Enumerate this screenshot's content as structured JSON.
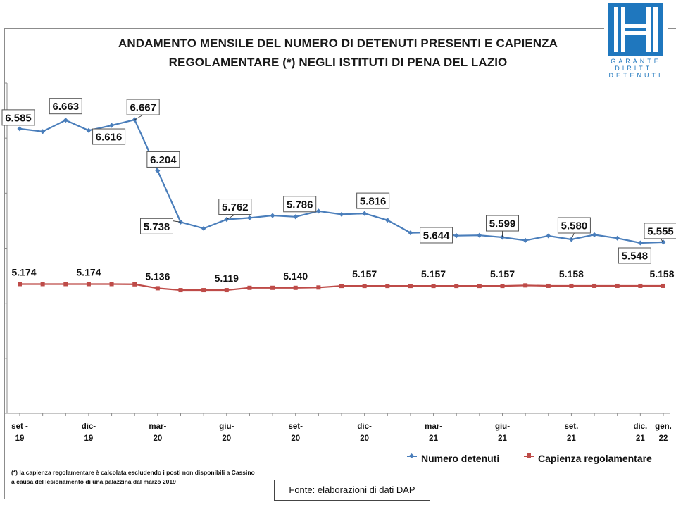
{
  "title": {
    "line1": "ANDAMENTO MENSILE  DEL NUMERO DI DETENUTI PRESENTI E CAPIENZA",
    "line2": "REGOLAMENTARE (*) NEGLI ISTITUTI DI PENA DEL LAZIO"
  },
  "logo": {
    "line1": "GARANTE",
    "line2": "DIRITTI",
    "line3": "DETENUTI"
  },
  "footnote": {
    "line1": "(*) la capienza regolamentare è calcolata escludendo i posti non disponibili a Cassino",
    "line2": "a causa del lesionamento di una palazzina dal marzo 2019"
  },
  "source": "Fonte: elaborazioni di dati DAP",
  "colors": {
    "detenuti": "#4a7ebb",
    "capienza": "#be4b48",
    "axis": "#8c8c8c"
  },
  "chart_data": {
    "type": "line",
    "ylim": [
      4000,
      7000
    ],
    "grid": false,
    "legend_position": "bottom-right",
    "tick_labels": [
      {
        "index": 0,
        "line1": "set -",
        "line2": "19"
      },
      {
        "index": 3,
        "line1": "dic-",
        "line2": "19"
      },
      {
        "index": 6,
        "line1": "mar-",
        "line2": "20"
      },
      {
        "index": 9,
        "line1": "giu-",
        "line2": "20"
      },
      {
        "index": 12,
        "line1": "set-",
        "line2": "20"
      },
      {
        "index": 15,
        "line1": "dic-",
        "line2": "20"
      },
      {
        "index": 18,
        "line1": "mar-",
        "line2": "21"
      },
      {
        "index": 21,
        "line1": "giu-",
        "line2": "21"
      },
      {
        "index": 24,
        "line1": "set.",
        "line2": "21"
      },
      {
        "index": 27,
        "line1": "dic.",
        "line2": "21"
      },
      {
        "index": 28,
        "line1": "gen.",
        "line2": "22"
      }
    ],
    "series": [
      {
        "name": "Numero detenuti",
        "values": [
          6585,
          6560,
          6663,
          6570,
          6616,
          6667,
          6204,
          5738,
          5680,
          5762,
          5776,
          5797,
          5786,
          5837,
          5808,
          5816,
          5755,
          5640,
          5644,
          5614,
          5617,
          5599,
          5571,
          5612,
          5580,
          5622,
          5591,
          5548,
          5555
        ],
        "labels": [
          {
            "index": 0,
            "text": "6.585"
          },
          {
            "index": 2,
            "text": "6.663"
          },
          {
            "index": 4,
            "text": "6.616"
          },
          {
            "index": 5,
            "text": "6.667"
          },
          {
            "index": 6,
            "text": "6.204"
          },
          {
            "index": 7,
            "text": "5.738"
          },
          {
            "index": 9,
            "text": "5.762"
          },
          {
            "index": 12,
            "text": "5.786"
          },
          {
            "index": 15,
            "text": "5.816"
          },
          {
            "index": 18,
            "text": "5.644"
          },
          {
            "index": 21,
            "text": "5.599"
          },
          {
            "index": 24,
            "text": "5.580"
          },
          {
            "index": 27,
            "text": "5.548"
          },
          {
            "index": 28,
            "text": "5.555"
          }
        ]
      },
      {
        "name": "Capienza regolamentare",
        "values": [
          5174,
          5174,
          5174,
          5174,
          5174,
          5172,
          5136,
          5119,
          5119,
          5119,
          5140,
          5140,
          5140,
          5143,
          5157,
          5157,
          5157,
          5157,
          5157,
          5157,
          5157,
          5157,
          5162,
          5158,
          5158,
          5158,
          5158,
          5158,
          5158
        ],
        "labels": [
          {
            "index": 0,
            "text": "5.174"
          },
          {
            "index": 3,
            "text": "5.174"
          },
          {
            "index": 6,
            "text": "5.136"
          },
          {
            "index": 9,
            "text": "5.119"
          },
          {
            "index": 12,
            "text": "5.140"
          },
          {
            "index": 15,
            "text": "5.157"
          },
          {
            "index": 18,
            "text": "5.157"
          },
          {
            "index": 21,
            "text": "5.157"
          },
          {
            "index": 24,
            "text": "5.158"
          },
          {
            "index": 28,
            "text": "5.158"
          }
        ]
      }
    ]
  }
}
